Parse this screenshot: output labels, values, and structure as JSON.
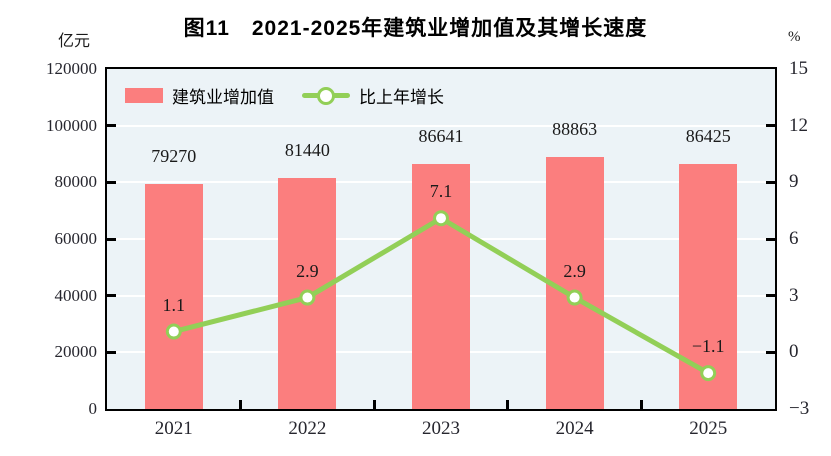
{
  "title": "图11　2021-2025年建筑业增加值及其增长速度",
  "axes": {
    "left_unit": "亿元",
    "right_unit": "%"
  },
  "legend": {
    "items": [
      {
        "label": "建筑业增加值",
        "marker": "bar-swatch"
      },
      {
        "label": "比上年增长",
        "marker": "line-marker"
      }
    ]
  },
  "chart_data": {
    "type": "bar+line",
    "title": "图11　2021-2025年建筑业增加值及其增长速度",
    "categories": [
      "2021",
      "2022",
      "2023",
      "2024",
      "2025"
    ],
    "series": [
      {
        "name": "建筑业增加值",
        "type": "bar",
        "axis": "left",
        "unit": "亿元",
        "values": [
          79270,
          81440,
          86641,
          88863,
          86425
        ],
        "labels": [
          "79270",
          "81440",
          "86641",
          "88863",
          "86425"
        ]
      },
      {
        "name": "比上年增长",
        "type": "line",
        "axis": "right",
        "unit": "%",
        "values": [
          1.1,
          2.9,
          7.1,
          2.9,
          -1.1
        ],
        "labels": [
          "1.1",
          "2.9",
          "7.1",
          "2.9",
          "−1.1"
        ]
      }
    ],
    "left_axis": {
      "unit": "亿元",
      "min": 0,
      "max": 120000,
      "ticks": [
        "120000",
        "100000",
        "80000",
        "60000",
        "40000",
        "20000",
        "0"
      ]
    },
    "right_axis": {
      "unit": "%",
      "min": -3,
      "max": 15,
      "ticks": [
        "15",
        "12",
        "9",
        "6",
        "3",
        "0",
        "−3"
      ]
    },
    "grid": true,
    "legend_position": "top-left-inside"
  },
  "colors": {
    "bar": "#fb7e7e",
    "line": "#92cf57",
    "marker_fill": "#ffffff",
    "plot_bg": "#ecf3f7",
    "grid": "#ffffff",
    "border": "#000000",
    "text": "#1a1a1a",
    "page_bg": "#ffffff"
  }
}
